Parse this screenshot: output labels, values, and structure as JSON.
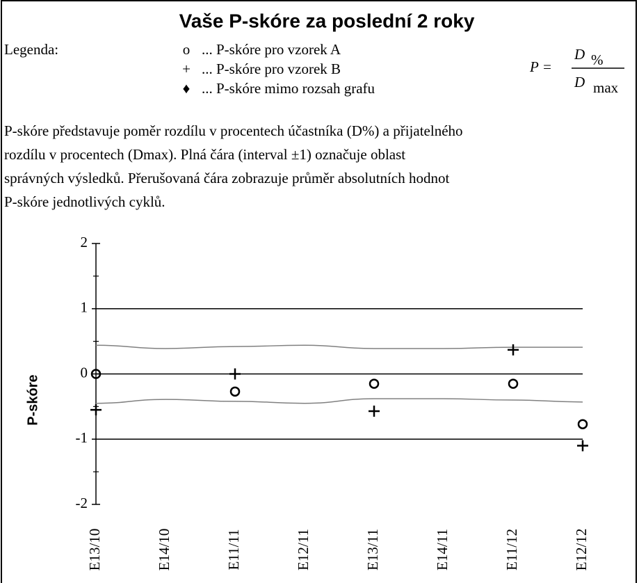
{
  "chart_data": {
    "type": "scatter",
    "title": "Vaše P-skóre za poslední 2 roky",
    "legend": {
      "label": "Legenda:",
      "items": [
        {
          "symbol": "o",
          "text": "... P-skóre pro vzorek A"
        },
        {
          "symbol": "+",
          "text": "... P-skóre pro vzorek B"
        },
        {
          "symbol": "♦",
          "text": "... P-skóre mimo rozsah grafu"
        }
      ]
    },
    "formula": {
      "lhs": "P =",
      "numerator": "D",
      "numerator_sub": "%",
      "denominator": "D",
      "denominator_sub": "max"
    },
    "description": [
      "P-skóre představuje poměr rozdílu v procentech účastníka (D%) a přijatelného",
      "rozdílu v procentech (Dmax). Plná čára (interval ±1) označuje oblast",
      "správných výsledků. Přerušovaná čára zobrazuje průměr absolutních hodnot",
      "P-skóre jednotlivých cyklů."
    ],
    "ylabel": "P-skóre",
    "categories": [
      "E13/10",
      "E14/10",
      "E11/11",
      "E12/11",
      "E13/11",
      "E14/11",
      "E11/12",
      "E12/12"
    ],
    "series": [
      {
        "name": "A",
        "marker": "circle",
        "color": "#000000",
        "values": [
          0.0,
          null,
          -0.27,
          null,
          -0.15,
          null,
          -0.15,
          -0.77
        ]
      },
      {
        "name": "B",
        "marker": "plus",
        "color": "#000000",
        "values": [
          -0.55,
          null,
          0.0,
          null,
          -0.57,
          null,
          0.37,
          -1.1
        ]
      }
    ],
    "upper_line": [
      0.44,
      0.39,
      0.42,
      0.44,
      0.39,
      0.39,
      0.41,
      0.41
    ],
    "lower_line": [
      -0.45,
      -0.39,
      -0.42,
      -0.45,
      -0.38,
      -0.38,
      -0.4,
      -0.43
    ],
    "band_color": "#808080",
    "ylim": [
      -2,
      2
    ],
    "yticks": [
      -2,
      -1,
      0,
      1,
      2
    ],
    "yminorticks": [
      -1.5,
      -0.5,
      0.5,
      1.5
    ],
    "hlines": [
      -1,
      0,
      1
    ]
  }
}
